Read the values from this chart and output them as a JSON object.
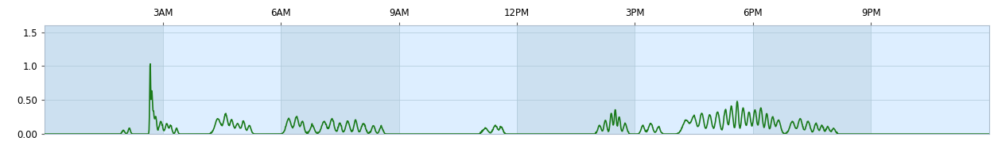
{
  "line_color": "#1a7a1a",
  "line_width": 1.2,
  "fig_bg": "#ffffff",
  "band_colors": [
    "#cce0f0",
    "#ddeeff"
  ],
  "ylim": [
    0.0,
    1.6
  ],
  "yticks": [
    0.0,
    0.5,
    1.0,
    1.5
  ],
  "ytick_labels": [
    "0.00",
    "0.50",
    "1.0",
    "1.5"
  ],
  "xtick_hours": [
    3,
    6,
    9,
    12,
    15,
    18,
    21
  ],
  "xtick_labels": [
    "3AM",
    "6AM",
    "9AM",
    "12PM",
    "3PM",
    "6PM",
    "9PM"
  ],
  "total_hours": 24,
  "figsize": [
    12.5,
    1.78
  ],
  "dpi": 100,
  "grid_color": "#aec8d8",
  "spine_color": "#aabbcc",
  "tick_color": "#555555",
  "label_fontsize": 8.5
}
